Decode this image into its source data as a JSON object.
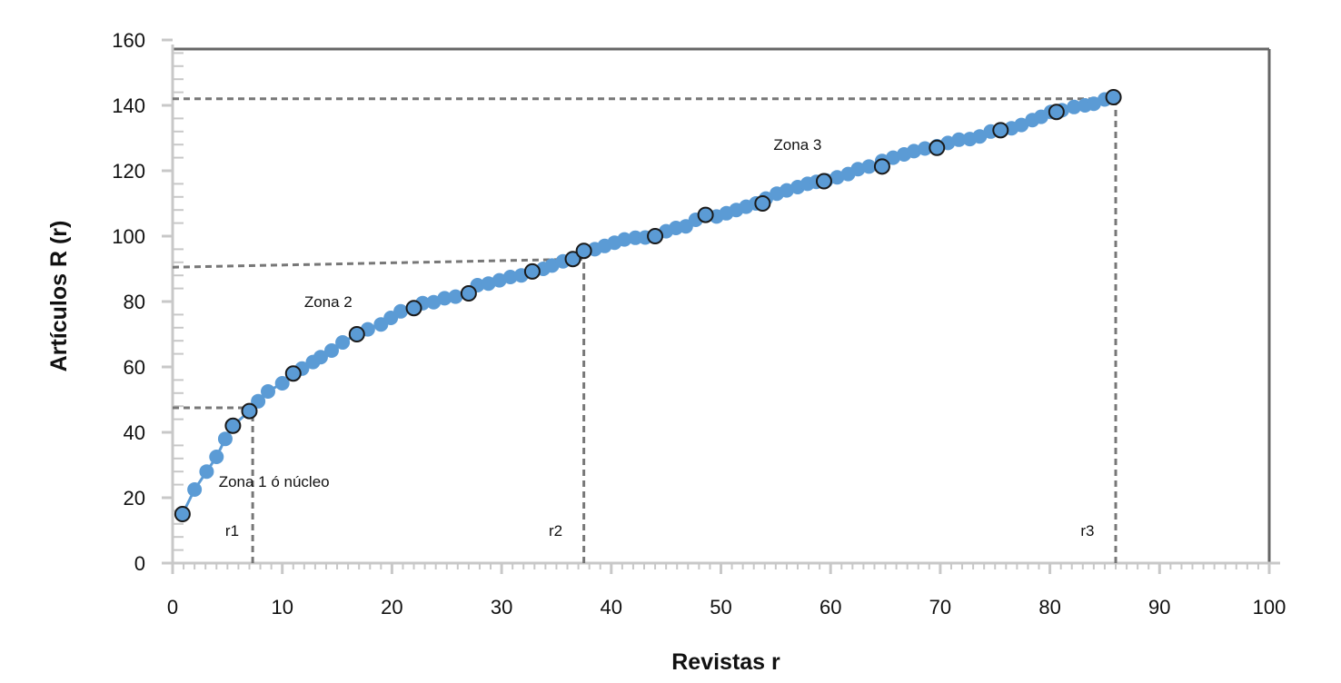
{
  "chart_data": {
    "type": "line",
    "xlabel": "Revistas r",
    "ylabel": "Artículos R (r)",
    "xlim": [
      0,
      100
    ],
    "ylim": [
      0,
      160
    ],
    "xticks": [
      0,
      10,
      20,
      30,
      40,
      50,
      60,
      70,
      80,
      90,
      100
    ],
    "yticks": [
      0,
      20,
      40,
      60,
      80,
      100,
      120,
      140,
      160
    ],
    "grid": false,
    "legend": "none",
    "colors": {
      "series": "#5b9bd5",
      "highlight_stroke": "#1a1a1a",
      "reference": "#777777",
      "axis": "#c8c8c8",
      "frame": "#666666"
    },
    "series": [
      {
        "x": [
          0.9,
          2,
          3.1,
          4,
          4.8,
          5.5,
          7,
          7.8,
          8.7,
          10,
          11,
          11.8,
          12.8,
          13.5,
          14.5,
          15.5,
          16.8,
          17.8,
          19,
          19.9,
          20.8,
          22,
          22.8,
          23.8,
          24.8,
          25.8,
          27,
          27.8,
          28.8,
          29.8,
          30.8,
          31.8,
          32.8,
          33.8,
          34.6,
          35.6,
          36.5,
          37.5,
          38.5,
          39.4,
          40.3,
          41.2,
          42.2,
          43.1,
          44,
          45,
          45.9,
          46.8,
          47.7,
          48.6,
          49.6,
          50.5,
          51.4,
          52.3,
          53.2,
          54.1,
          55.1,
          56,
          57,
          57.9,
          58.7,
          59.6,
          60.6,
          61.6,
          62.5,
          63.5,
          64.7,
          65.7,
          66.7,
          67.6,
          68.6,
          69.7,
          70.7,
          71.7,
          72.7,
          73.6,
          74.6,
          75.5,
          76.5,
          77.4,
          78.4,
          79.2,
          80.1,
          81.1,
          82.2,
          83.2,
          84,
          85,
          85.8
        ],
        "y": [
          15,
          22.5,
          28,
          32.5,
          38,
          42,
          46.5,
          49.5,
          52.5,
          55,
          58,
          59.5,
          61.5,
          63,
          65,
          67.5,
          70,
          71.5,
          73,
          75,
          77,
          78,
          79.5,
          79.8,
          81,
          81.5,
          82.5,
          85,
          85.5,
          86.5,
          87.5,
          88,
          89.2,
          90,
          91,
          92.3,
          93,
          95.5,
          96,
          97,
          98,
          99,
          99.5,
          99.6,
          100,
          101.5,
          102.5,
          103,
          105,
          106.5,
          106,
          107,
          108,
          109,
          110,
          111.5,
          113,
          114,
          115,
          116,
          116.6,
          117,
          118,
          119,
          120.5,
          121.3,
          123,
          124,
          125,
          126,
          126.8,
          127.5,
          128.5,
          129.5,
          129.7,
          130.5,
          132,
          132.4,
          133,
          134,
          135.5,
          136.5,
          138,
          138.5,
          139.5,
          140,
          140.5,
          141.8,
          142.5
        ]
      }
    ],
    "highlighted_points": [
      {
        "x": 0.9,
        "y": 15
      },
      {
        "x": 5.5,
        "y": 42
      },
      {
        "x": 7,
        "y": 46.5
      },
      {
        "x": 11,
        "y": 58
      },
      {
        "x": 16.8,
        "y": 70
      },
      {
        "x": 22,
        "y": 78
      },
      {
        "x": 27,
        "y": 82.5
      },
      {
        "x": 32.8,
        "y": 89.2
      },
      {
        "x": 36.5,
        "y": 93
      },
      {
        "x": 37.5,
        "y": 95.5
      },
      {
        "x": 44,
        "y": 100
      },
      {
        "x": 48.6,
        "y": 106.5
      },
      {
        "x": 53.8,
        "y": 110
      },
      {
        "x": 59.4,
        "y": 116.8
      },
      {
        "x": 64.7,
        "y": 121.3
      },
      {
        "x": 69.7,
        "y": 127
      },
      {
        "x": 75.5,
        "y": 132.4
      },
      {
        "x": 80.6,
        "y": 138
      },
      {
        "x": 85.8,
        "y": 142.5
      }
    ],
    "reference_lines": [
      {
        "type": "horizontal",
        "x_from": 0,
        "x_to": 7.3,
        "y": 47.5
      },
      {
        "type": "vertical",
        "x": 7.3,
        "y_from": 0,
        "y_to": 47.5
      },
      {
        "type": "horizontal",
        "x_from": 0,
        "x_to": 37.5,
        "y_start": 90.5,
        "y_end": 93
      },
      {
        "type": "vertical",
        "x": 37.5,
        "y_from": 0,
        "y_to": 93
      },
      {
        "type": "horizontal",
        "x_from": 0,
        "x_to": 86,
        "y": 142
      },
      {
        "type": "vertical",
        "x": 86,
        "y_from": 0,
        "y_to": 142
      }
    ],
    "annotations": [
      {
        "text": "Zona 1 ó núcleo",
        "x": 4.2,
        "y": 25
      },
      {
        "text": "Zona 2",
        "x": 12,
        "y": 80
      },
      {
        "text": "Zona 3",
        "x": 54.8,
        "y": 128
      },
      {
        "text": "r1",
        "x": 4.8,
        "y": 10
      },
      {
        "text": "r2",
        "x": 34.3,
        "y": 10
      },
      {
        "text": "r3",
        "x": 82.8,
        "y": 10
      }
    ]
  }
}
